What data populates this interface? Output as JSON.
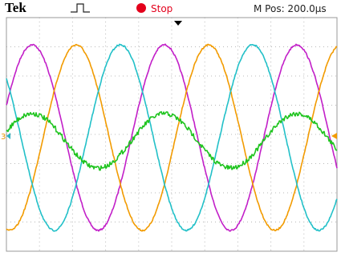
{
  "header": {
    "brand": "Tek",
    "status": "Stop",
    "position": "M Pos: 200.0µs"
  },
  "markers": {
    "channel": "3"
  }
}
